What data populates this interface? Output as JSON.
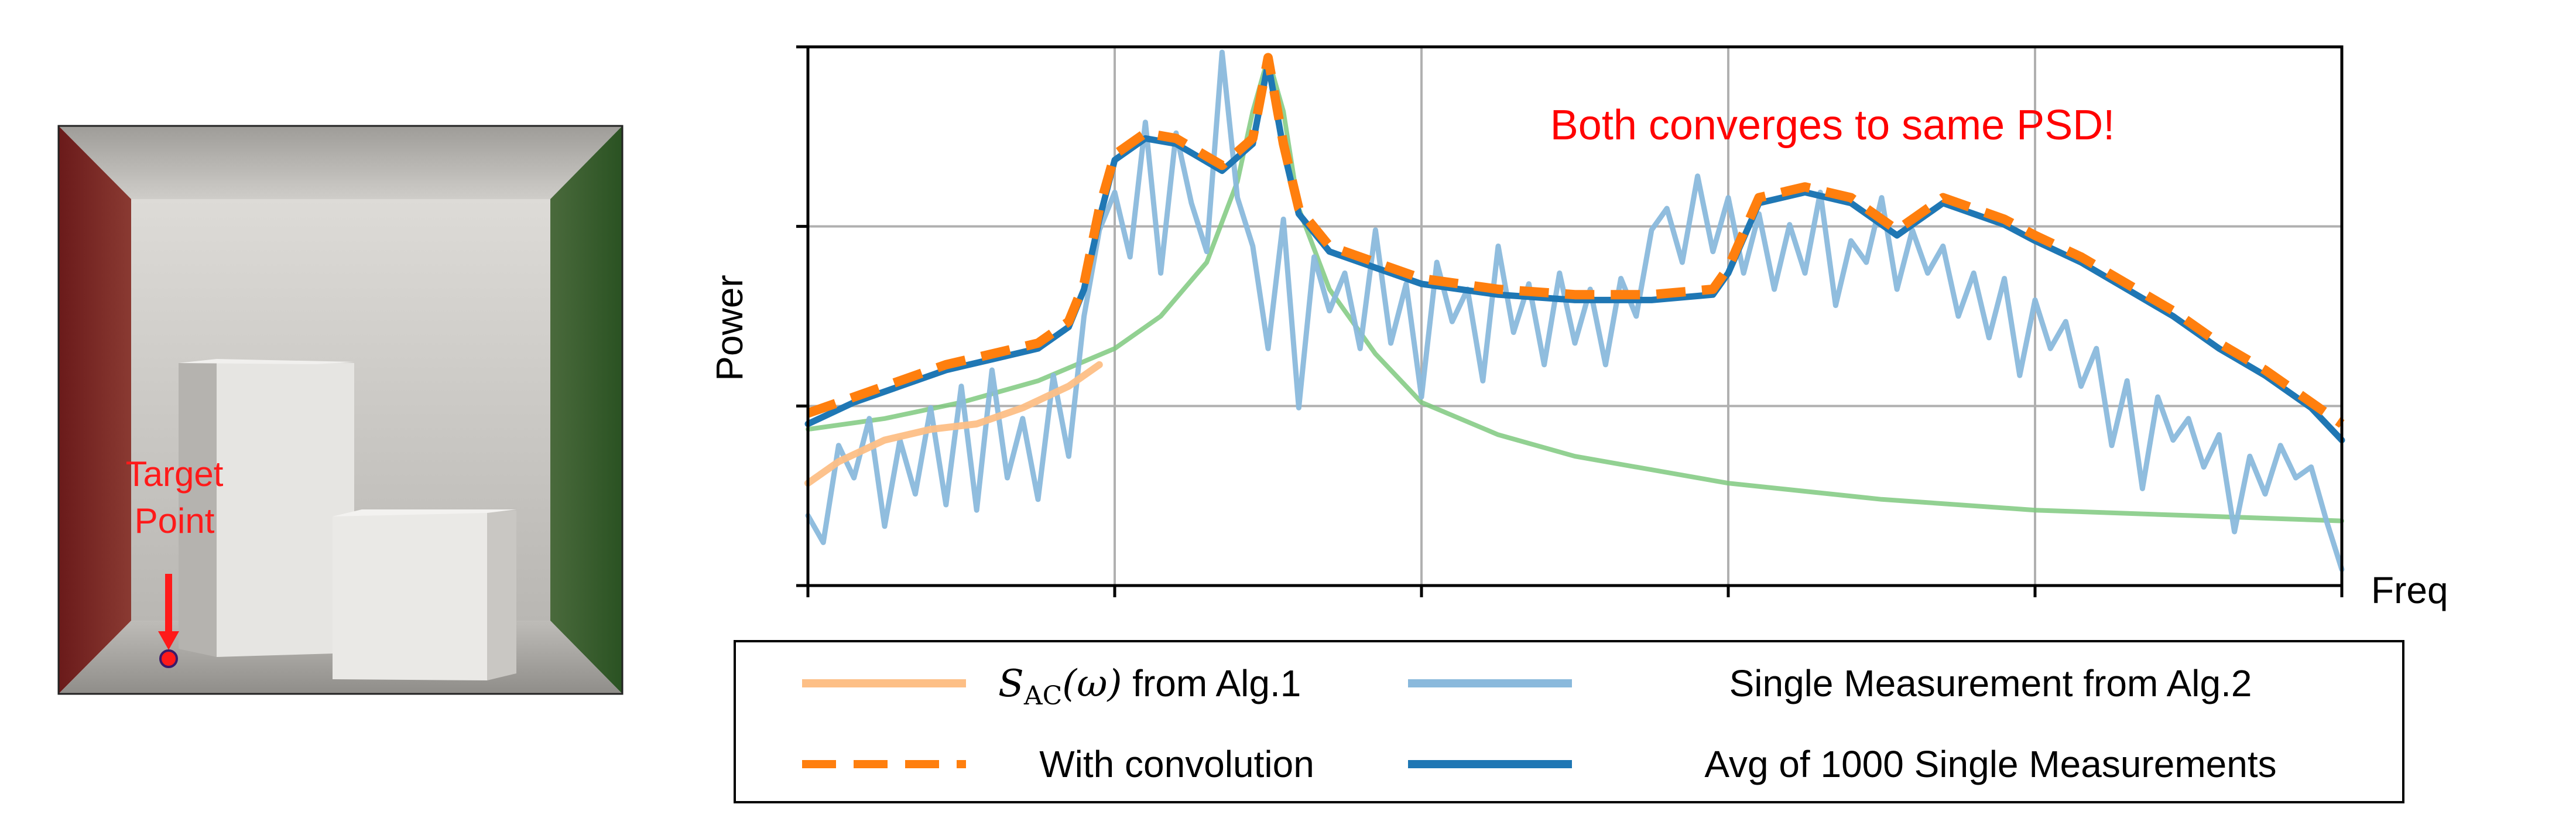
{
  "scene": {
    "target_label_line1": "Target",
    "target_label_line2": "Point",
    "colors": {
      "left_wall": "#7a2222",
      "right_wall": "#2f5a25",
      "back_wall": "#d2d0cc",
      "ceiling": "#b8b6b2",
      "floor": "#a9a7a3",
      "box": "#e7e6e3",
      "marker": "#ff1a1a"
    }
  },
  "chart_data": {
    "type": "line",
    "title": "",
    "xlabel": "Freq",
    "ylabel": "Power",
    "annotation": "Both converges to same PSD!",
    "annotation_color": "#ff0000",
    "grid": true,
    "xlim": [
      0,
      1
    ],
    "ylim": [
      0,
      1
    ],
    "legend_placement": "bottom",
    "series": [
      {
        "name_prefix": "S",
        "name_subscript": "AC",
        "name_arg": "(ω)",
        "name_suffix": " from Alg.1",
        "color": "#fdbf86",
        "style": "solid",
        "x": [
          0.0,
          0.02,
          0.05,
          0.08,
          0.11,
          0.14,
          0.17,
          0.19
        ],
        "y": [
          0.19,
          0.23,
          0.27,
          0.29,
          0.3,
          0.33,
          0.37,
          0.41
        ]
      },
      {
        "name": "Single Measurement from Alg.2",
        "color": "#8ab9dc",
        "style": "solid",
        "x": [
          0.0,
          0.01,
          0.02,
          0.03,
          0.04,
          0.05,
          0.06,
          0.07,
          0.08,
          0.09,
          0.1,
          0.11,
          0.12,
          0.13,
          0.14,
          0.15,
          0.16,
          0.17,
          0.18,
          0.19,
          0.2,
          0.21,
          0.22,
          0.23,
          0.24,
          0.25,
          0.26,
          0.27,
          0.28,
          0.29,
          0.3,
          0.31,
          0.32,
          0.33,
          0.34,
          0.35,
          0.36,
          0.37,
          0.38,
          0.39,
          0.4,
          0.41,
          0.42,
          0.43,
          0.44,
          0.45,
          0.46,
          0.47,
          0.48,
          0.49,
          0.5,
          0.51,
          0.52,
          0.53,
          0.54,
          0.55,
          0.56,
          0.57,
          0.58,
          0.59,
          0.6,
          0.61,
          0.62,
          0.63,
          0.64,
          0.65,
          0.66,
          0.67,
          0.68,
          0.69,
          0.7,
          0.71,
          0.72,
          0.73,
          0.74,
          0.75,
          0.76,
          0.77,
          0.78,
          0.79,
          0.8,
          0.81,
          0.82,
          0.83,
          0.84,
          0.85,
          0.86,
          0.87,
          0.88,
          0.89,
          0.9,
          0.91,
          0.92,
          0.93,
          0.94,
          0.95,
          0.96,
          0.97,
          0.98,
          0.99,
          1.0
        ],
        "y": [
          0.13,
          0.08,
          0.26,
          0.2,
          0.31,
          0.11,
          0.27,
          0.17,
          0.33,
          0.15,
          0.37,
          0.14,
          0.4,
          0.2,
          0.31,
          0.16,
          0.39,
          0.24,
          0.5,
          0.66,
          0.73,
          0.61,
          0.86,
          0.58,
          0.84,
          0.71,
          0.62,
          0.99,
          0.72,
          0.63,
          0.44,
          0.68,
          0.33,
          0.61,
          0.51,
          0.58,
          0.44,
          0.66,
          0.45,
          0.56,
          0.35,
          0.6,
          0.49,
          0.55,
          0.38,
          0.63,
          0.47,
          0.56,
          0.41,
          0.58,
          0.45,
          0.55,
          0.41,
          0.57,
          0.5,
          0.66,
          0.7,
          0.6,
          0.76,
          0.62,
          0.72,
          0.58,
          0.69,
          0.55,
          0.67,
          0.58,
          0.73,
          0.52,
          0.64,
          0.6,
          0.72,
          0.55,
          0.66,
          0.58,
          0.63,
          0.5,
          0.58,
          0.46,
          0.57,
          0.39,
          0.53,
          0.44,
          0.49,
          0.37,
          0.44,
          0.26,
          0.38,
          0.18,
          0.35,
          0.27,
          0.31,
          0.22,
          0.28,
          0.1,
          0.24,
          0.17,
          0.26,
          0.2,
          0.22,
          0.12,
          0.03
        ]
      },
      {
        "name": "With convolution",
        "color": "#ff7f0e",
        "style": "dashed",
        "x": [
          0.0,
          0.03,
          0.06,
          0.09,
          0.12,
          0.15,
          0.17,
          0.18,
          0.19,
          0.2,
          0.22,
          0.24,
          0.27,
          0.29,
          0.3,
          0.31,
          0.32,
          0.34,
          0.37,
          0.4,
          0.45,
          0.5,
          0.55,
          0.59,
          0.6,
          0.62,
          0.65,
          0.68,
          0.71,
          0.74,
          0.76,
          0.78,
          0.8,
          0.83,
          0.86,
          0.89,
          0.92,
          0.95,
          0.98,
          1.0
        ],
        "y": [
          0.32,
          0.35,
          0.38,
          0.41,
          0.43,
          0.45,
          0.49,
          0.56,
          0.7,
          0.8,
          0.84,
          0.83,
          0.78,
          0.83,
          0.98,
          0.82,
          0.7,
          0.63,
          0.6,
          0.57,
          0.55,
          0.54,
          0.54,
          0.55,
          0.59,
          0.72,
          0.74,
          0.72,
          0.66,
          0.72,
          0.7,
          0.68,
          0.65,
          0.61,
          0.56,
          0.51,
          0.45,
          0.4,
          0.34,
          0.3
        ]
      },
      {
        "name": "Avg of 1000 Single Measurements",
        "color": "#1f77b4",
        "style": "solid",
        "x": [
          0.0,
          0.03,
          0.06,
          0.09,
          0.12,
          0.15,
          0.17,
          0.18,
          0.19,
          0.2,
          0.22,
          0.24,
          0.27,
          0.29,
          0.3,
          0.31,
          0.32,
          0.34,
          0.37,
          0.4,
          0.45,
          0.5,
          0.55,
          0.59,
          0.6,
          0.62,
          0.65,
          0.68,
          0.71,
          0.74,
          0.76,
          0.78,
          0.8,
          0.83,
          0.86,
          0.89,
          0.92,
          0.95,
          0.98,
          1.0
        ],
        "y": [
          0.3,
          0.34,
          0.37,
          0.4,
          0.42,
          0.44,
          0.48,
          0.55,
          0.68,
          0.79,
          0.83,
          0.82,
          0.77,
          0.82,
          0.97,
          0.81,
          0.69,
          0.62,
          0.59,
          0.56,
          0.54,
          0.53,
          0.53,
          0.54,
          0.58,
          0.71,
          0.73,
          0.71,
          0.65,
          0.71,
          0.69,
          0.67,
          0.64,
          0.6,
          0.55,
          0.5,
          0.44,
          0.39,
          0.33,
          0.27
        ]
      },
      {
        "name": "",
        "color": "#7fc97f",
        "style": "solid",
        "x": [
          0.0,
          0.05,
          0.1,
          0.15,
          0.2,
          0.23,
          0.26,
          0.28,
          0.29,
          0.3,
          0.31,
          0.32,
          0.34,
          0.37,
          0.4,
          0.45,
          0.5,
          0.6,
          0.7,
          0.8,
          0.9,
          1.0
        ],
        "y": [
          0.29,
          0.31,
          0.34,
          0.38,
          0.44,
          0.5,
          0.6,
          0.75,
          0.88,
          0.98,
          0.88,
          0.7,
          0.55,
          0.43,
          0.34,
          0.28,
          0.24,
          0.19,
          0.16,
          0.14,
          0.13,
          0.12
        ]
      }
    ]
  }
}
